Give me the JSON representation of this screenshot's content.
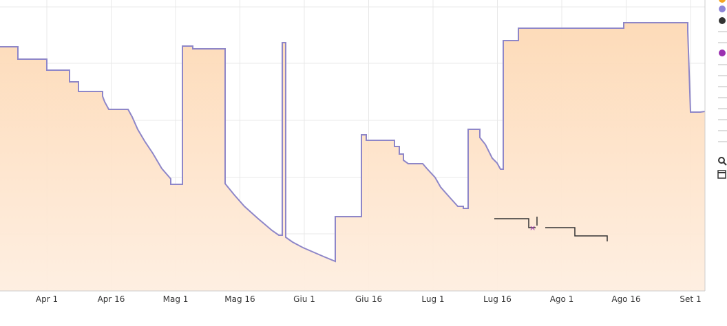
{
  "x_axis_labels": [
    "Apr 1",
    "Apr 16",
    "Mag 1",
    "Mag 16",
    "Giu 1",
    "Giu 16",
    "Lug 1",
    "Lug 16",
    "Ago 1",
    "Ago 16",
    "Set 1"
  ]
}
